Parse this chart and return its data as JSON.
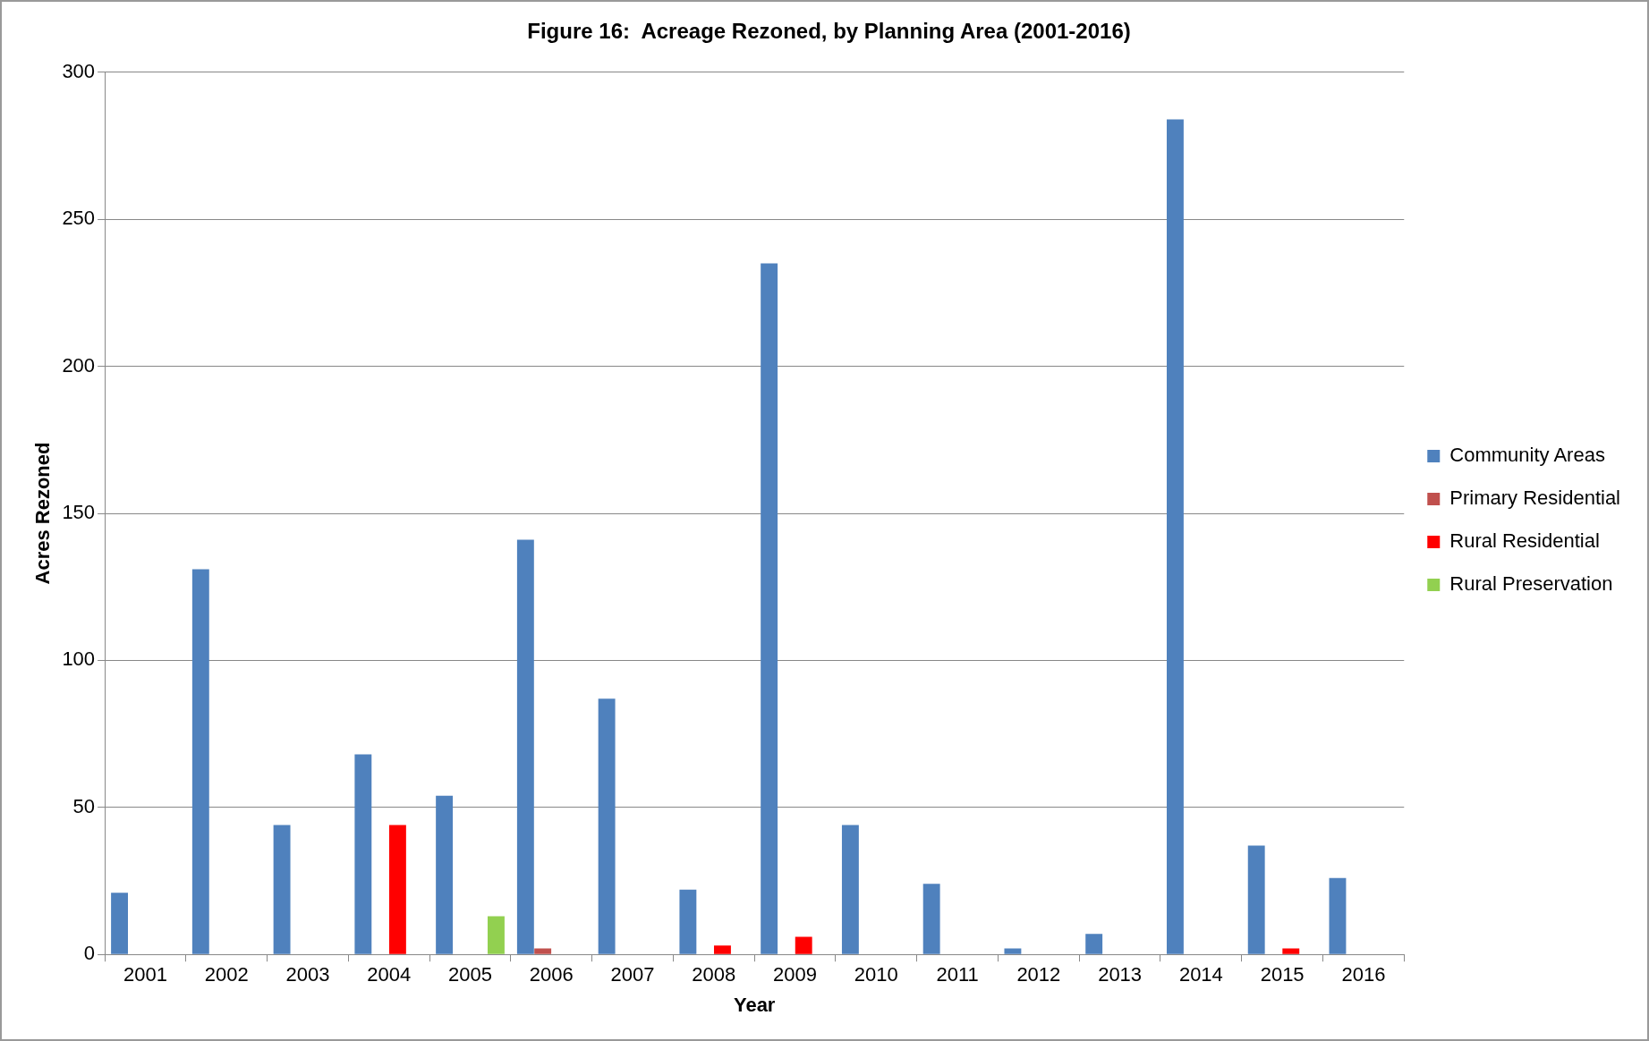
{
  "chart_data": {
    "type": "bar",
    "title": "Figure 16:  Acreage Rezoned, by Planning Area (2001-2016)",
    "xlabel": "Year",
    "ylabel": "Acres Rezoned",
    "categories": [
      "2001",
      "2002",
      "2003",
      "2004",
      "2005",
      "2006",
      "2007",
      "2008",
      "2009",
      "2010",
      "2011",
      "2012",
      "2013",
      "2014",
      "2015",
      "2016"
    ],
    "series": [
      {
        "name": "Community Areas",
        "color": "#4f81bd",
        "values": [
          21,
          131,
          44,
          68,
          54,
          141,
          87,
          22,
          235,
          44,
          24,
          2,
          7,
          284,
          37,
          26
        ]
      },
      {
        "name": "Primary Residential",
        "color": "#c0504d",
        "values": [
          0,
          0,
          0,
          0,
          0,
          2,
          0,
          0,
          0,
          0,
          0,
          0,
          0,
          0,
          0,
          0
        ]
      },
      {
        "name": "Rural Residential",
        "color": "#ff0000",
        "values": [
          0,
          0,
          0,
          44,
          0,
          0,
          0,
          3,
          6,
          0,
          0,
          0,
          0,
          0,
          2,
          0
        ]
      },
      {
        "name": "Rural Preservation",
        "color": "#92d050",
        "values": [
          0,
          0,
          0,
          0,
          13,
          0,
          0,
          0,
          0,
          0,
          0,
          0,
          0,
          0,
          0,
          0
        ]
      }
    ],
    "ylim": [
      0,
      300
    ],
    "yticks": [
      0,
      50,
      100,
      150,
      200,
      250,
      300
    ],
    "grid": "y",
    "legend": "right"
  }
}
